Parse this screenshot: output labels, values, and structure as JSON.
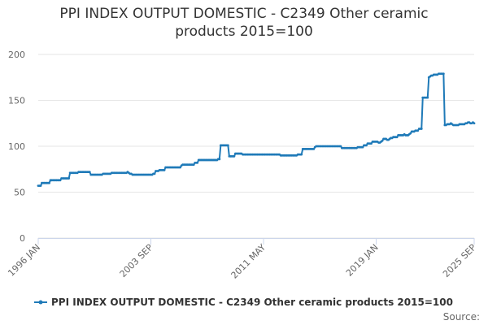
{
  "chart_data": {
    "type": "line",
    "title": "PPI INDEX OUTPUT DOMESTIC - C2349 Other ceramic products 2015=100",
    "source": "Source:",
    "categories": [
      "1996 JAN",
      null,
      null,
      null,
      null,
      null,
      null,
      null,
      null,
      null,
      null,
      null,
      null,
      null,
      null,
      null,
      null,
      null,
      null,
      null,
      null,
      null,
      null,
      null,
      null,
      null,
      null,
      null,
      null,
      null,
      null,
      null,
      null,
      null,
      null,
      null,
      null,
      null,
      null,
      null,
      null,
      null,
      null,
      null,
      null,
      null,
      null,
      null,
      null,
      null,
      null,
      null,
      null,
      null,
      null,
      null,
      null,
      null,
      null,
      null,
      null,
      null,
      null,
      null,
      null,
      null,
      null,
      null,
      null,
      null,
      null,
      null,
      null,
      null,
      null,
      null,
      null,
      null,
      null,
      null,
      null,
      null,
      null,
      null,
      null,
      null,
      null,
      null,
      null,
      null,
      null,
      null,
      "2003 SEP",
      null,
      null,
      null,
      null,
      null,
      null,
      null,
      null,
      null,
      null,
      null,
      null,
      null,
      null,
      null,
      null,
      null,
      null,
      null,
      null,
      null,
      null,
      null,
      null,
      null,
      null,
      null,
      null,
      null,
      null,
      null,
      null,
      null,
      null,
      null,
      null,
      null,
      null,
      null,
      null,
      null,
      null,
      null,
      null,
      null,
      null,
      null,
      null,
      null,
      null,
      null,
      null,
      null,
      null,
      null,
      null,
      null,
      null,
      null,
      null,
      null,
      null,
      null,
      null,
      null,
      null,
      null,
      null,
      null,
      null,
      null,
      null,
      null,
      null,
      null,
      null,
      null,
      null,
      null,
      null,
      null,
      null,
      null,
      null,
      null,
      null,
      null,
      null,
      null,
      null,
      null,
      "2011 MAY",
      null,
      null,
      null,
      null,
      null,
      null,
      null,
      null,
      null,
      null,
      null,
      null,
      null,
      null,
      null,
      null,
      null,
      null,
      null,
      null,
      null,
      null,
      null,
      null,
      null,
      null,
      null,
      null,
      null,
      null,
      null,
      null,
      null,
      null,
      null,
      null,
      null,
      null,
      null,
      null,
      null,
      null,
      null,
      null,
      null,
      null,
      null,
      null,
      null,
      null,
      null,
      null,
      null,
      null,
      null,
      null,
      null,
      null,
      null,
      null,
      null,
      null,
      null,
      null,
      null,
      null,
      null,
      null,
      null,
      null,
      null,
      null,
      null,
      null,
      null,
      null,
      null,
      null,
      null,
      null,
      null,
      null,
      null,
      null,
      null,
      null,
      null,
      null,
      null,
      null,
      null,
      "2019 JAN",
      null,
      null,
      null,
      null,
      null,
      null,
      null,
      null,
      null,
      null,
      null,
      null,
      null,
      null,
      null,
      null,
      null,
      null,
      null,
      null,
      null,
      null,
      null,
      null,
      null,
      null,
      null,
      null,
      null,
      null,
      null,
      null,
      null,
      null,
      null,
      null,
      null,
      null,
      null,
      null,
      null,
      null,
      null,
      null,
      null,
      null,
      null,
      null,
      null,
      null,
      null,
      null,
      null,
      null,
      null,
      null,
      null,
      null,
      null,
      null,
      null,
      null,
      null,
      null,
      null,
      null,
      null,
      null,
      null,
      null,
      null,
      null,
      null,
      null,
      null,
      null,
      null,
      null,
      null,
      "2025 SEP"
    ],
    "series": [
      {
        "name": "PPI INDEX OUTPUT DOMESTIC - C2349 Other ceramic products 2015=100",
        "color": "#1f7ab8",
        "values": [
          57,
          57,
          57,
          60,
          60,
          60,
          60,
          60,
          60,
          60,
          63,
          63,
          63,
          63,
          63,
          63,
          63,
          63,
          63,
          65,
          65,
          65,
          65,
          65,
          65,
          65,
          71,
          71,
          71,
          71,
          71,
          71,
          71,
          72,
          72,
          72,
          72,
          72,
          72,
          72,
          72,
          72,
          72,
          69,
          69,
          69,
          69,
          69,
          69,
          69,
          69,
          69,
          69,
          70,
          70,
          70,
          70,
          70,
          70,
          70,
          71,
          71,
          71,
          71,
          71,
          71,
          71,
          71,
          71,
          71,
          71,
          71,
          71,
          72,
          71,
          70,
          70,
          69,
          69,
          69,
          69,
          69,
          69,
          69,
          69,
          69,
          69,
          69,
          69,
          69,
          69,
          69,
          69,
          69,
          70,
          70,
          73,
          73,
          73,
          74,
          74,
          74,
          74,
          74,
          77,
          77,
          77,
          77,
          77,
          77,
          77,
          77,
          77,
          77,
          77,
          77,
          77,
          79,
          80,
          80,
          80,
          80,
          80,
          80,
          80,
          80,
          80,
          80,
          82,
          82,
          82,
          85,
          85,
          85,
          85,
          85,
          85,
          85,
          85,
          85,
          85,
          85,
          85,
          85,
          85,
          85,
          85,
          86,
          86,
          101,
          101,
          101,
          101,
          101,
          101,
          101,
          89,
          89,
          89,
          89,
          89,
          92,
          92,
          92,
          92,
          92,
          92,
          91,
          91,
          91,
          91,
          91,
          91,
          91,
          91,
          91,
          91,
          91,
          91,
          91,
          91,
          91,
          91,
          91,
          91,
          91,
          91,
          91,
          91,
          91,
          91,
          91,
          91,
          91,
          91,
          91,
          91,
          91,
          90,
          90,
          90,
          90,
          90,
          90,
          90,
          90,
          90,
          90,
          90,
          90,
          90,
          90,
          91,
          91,
          91,
          91,
          97,
          97,
          97,
          97,
          97,
          97,
          97,
          97,
          97,
          97,
          99,
          100,
          100,
          100,
          100,
          100,
          100,
          100,
          100,
          100,
          100,
          100,
          100,
          100,
          100,
          100,
          100,
          100,
          100,
          100,
          100,
          100,
          98,
          98,
          98,
          98,
          98,
          98,
          98,
          98,
          98,
          98,
          98,
          98,
          98,
          99,
          99,
          99,
          99,
          99,
          101,
          101,
          101,
          103,
          103,
          103,
          103,
          105,
          105,
          105,
          105,
          105,
          104,
          104,
          105,
          106,
          108,
          108,
          108,
          107,
          107,
          108,
          109,
          109,
          110,
          110,
          110,
          110,
          112,
          112,
          112,
          112,
          112,
          113,
          112,
          112,
          112,
          113,
          114,
          116,
          116,
          116,
          117,
          117,
          117,
          119,
          119,
          119,
          153,
          153,
          153,
          153,
          153,
          175,
          176,
          177,
          177,
          178,
          178,
          178,
          178,
          179,
          179,
          179,
          179,
          179,
          123,
          123,
          124,
          124,
          124,
          125,
          124,
          123,
          123,
          123,
          123,
          123,
          124,
          124,
          124,
          124,
          124,
          125,
          125,
          126,
          126,
          125,
          125,
          126,
          125
        ]
      }
    ],
    "ylim": [
      0,
      200
    ],
    "yticks": [
      0,
      50,
      100,
      150,
      200
    ],
    "grid": true
  }
}
